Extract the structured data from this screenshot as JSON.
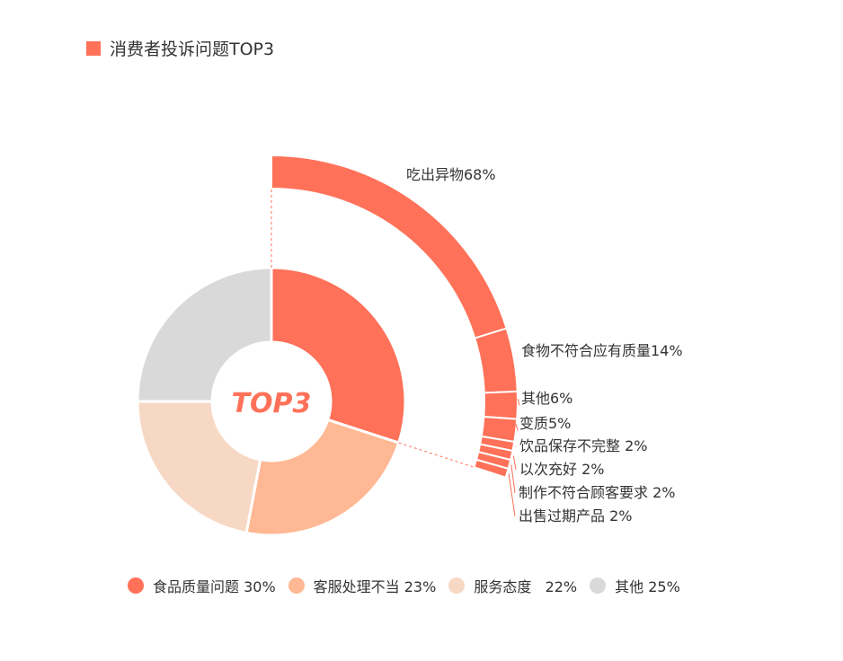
{
  "title": "消费者投诉问题TOP3",
  "center_label": "TOP3",
  "chart_data": [
    {
      "type": "pie",
      "variant": "donut",
      "series": [
        {
          "name": "食品质量问题",
          "value": 30,
          "label": "食品质量问题 30%",
          "color": "#ff7158"
        },
        {
          "name": "客服处理不当",
          "value": 23,
          "label": "客服处理不当 23%",
          "color": "#ffb894"
        },
        {
          "name": "服务态度",
          "value": 22,
          "label": "服务态度   22%",
          "color": "#f6d8c4"
        },
        {
          "name": "其他",
          "value": 25,
          "label": "其他 25%",
          "color": "#d9d9d9"
        }
      ],
      "legend": "bottom"
    },
    {
      "type": "pie",
      "variant": "breakdown-arc",
      "parent": "食品质量问题",
      "series": [
        {
          "name": "吃出异物",
          "value": 68,
          "label": "吃出异物68%"
        },
        {
          "name": "食物不符合应有质量",
          "value": 14,
          "label": "食物不符合应有质量14%"
        },
        {
          "name": "其他",
          "value": 6,
          "label": "其他6%"
        },
        {
          "name": "变质",
          "value": 5,
          "label": "变质5%"
        },
        {
          "name": "饮品保存不完整",
          "value": 2,
          "label": "饮品保存不完整 2%"
        },
        {
          "name": "以次充好",
          "value": 2,
          "label": "以次充好 2%"
        },
        {
          "name": "制作不符合顾客要求",
          "value": 2,
          "label": "制作不符合顾客要求 2%"
        },
        {
          "name": "出售过期产品",
          "value": 2,
          "label": "出售过期产品 2%"
        }
      ],
      "color": "#ff7158"
    }
  ]
}
